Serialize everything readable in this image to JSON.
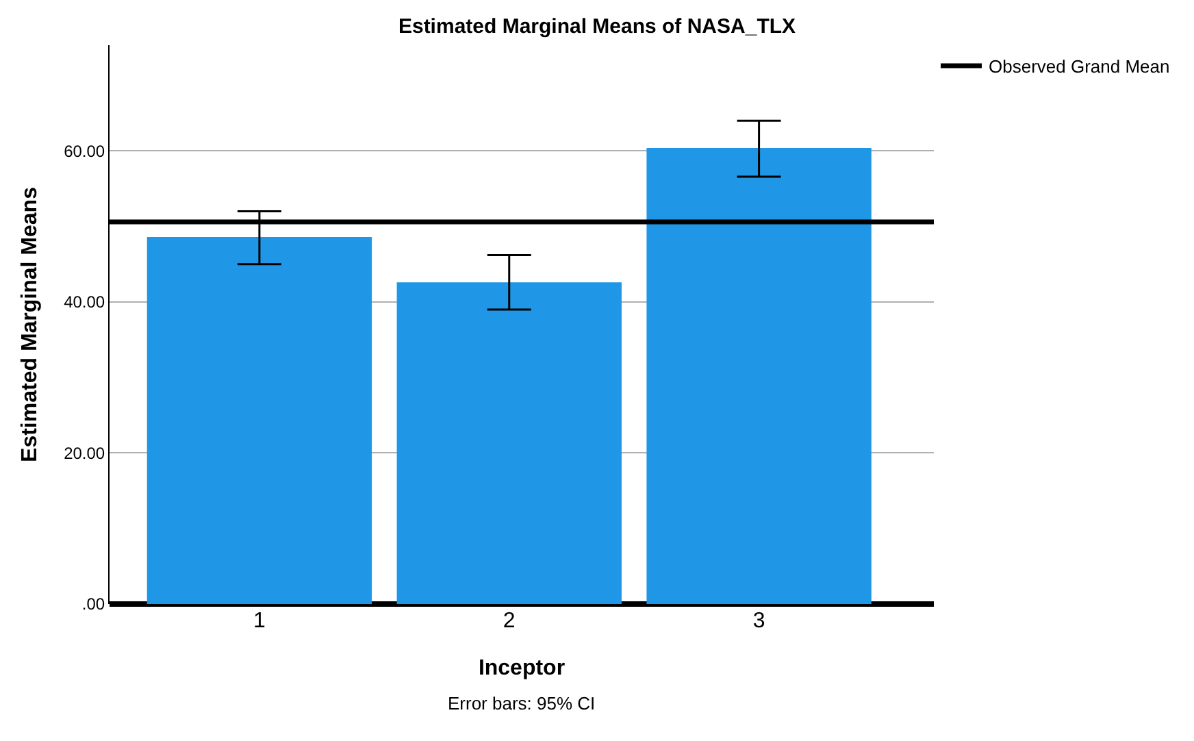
{
  "chart_data": {
    "type": "bar",
    "title": "Estimated Marginal Means of NASA_TLX",
    "xlabel": "Inceptor",
    "ylabel": "Estimated Marginal Means",
    "categories": [
      "1",
      "2",
      "3"
    ],
    "series": [
      {
        "color": "#1f97e6",
        "values": [
          48.6,
          42.6,
          60.4
        ],
        "errors": [
          [
            45.0,
            52.0
          ],
          [
            39.0,
            46.2
          ],
          [
            56.6,
            64.0
          ]
        ]
      }
    ],
    "ylim": [
      0,
      74
    ],
    "yticks": [
      {
        "value": 0,
        "label": ".00"
      },
      {
        "value": 20,
        "label": "20.00"
      },
      {
        "value": 40,
        "label": "40.00"
      },
      {
        "value": 60,
        "label": "60.00"
      }
    ],
    "grid": "y",
    "legend": "top right",
    "ref_lines": [
      {
        "axis": "y",
        "value": 50.6,
        "label": "Observed Grand Mean",
        "color": "#000000"
      }
    ],
    "annotations": [
      "Error bars: 95% CI"
    ]
  }
}
